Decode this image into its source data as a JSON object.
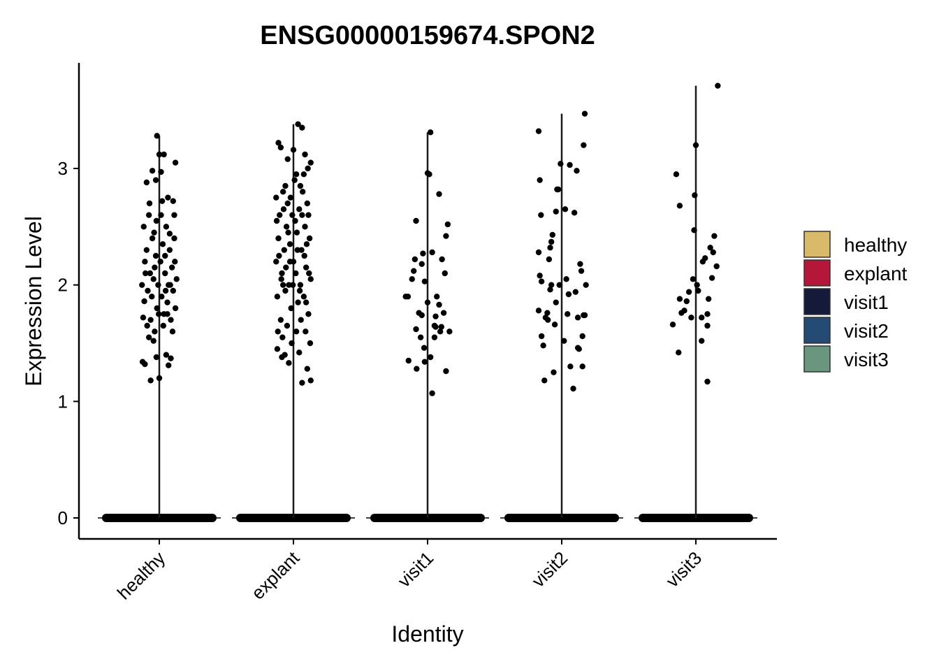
{
  "chart_data": {
    "type": "scatter",
    "subtype": "violin-jitter",
    "title": "ENSG00000159674.SPON2",
    "xlabel": "Identity",
    "ylabel": "Expression Level",
    "categories": [
      "healthy",
      "explant",
      "visit1",
      "visit2",
      "visit3"
    ],
    "yticks": [
      0,
      1,
      2,
      3
    ],
    "ylim": [
      -0.18,
      3.9
    ],
    "violin_max": [
      3.28,
      3.38,
      3.31,
      3.47,
      3.71
    ],
    "legend": {
      "position": "right",
      "entries": [
        {
          "label": "healthy",
          "color": "#D9B96A"
        },
        {
          "label": "explant",
          "color": "#B5173A"
        },
        {
          "label": "visit1",
          "color": "#161A3A"
        },
        {
          "label": "visit2",
          "color": "#244B74"
        },
        {
          "label": "visit3",
          "color": "#6A957E"
        }
      ]
    },
    "zero_band": {
      "value": 0
    },
    "point_color": "#000000",
    "series": [
      {
        "name": "healthy",
        "points": [
          [
            -0.3,
            2.0
          ],
          [
            -0.28,
            1.72
          ],
          [
            -0.26,
            1.86
          ],
          [
            -0.25,
            2.2
          ],
          [
            -0.22,
            2.3
          ],
          [
            -0.2,
            1.95
          ],
          [
            -0.18,
            2.6
          ],
          [
            -0.16,
            2.1
          ],
          [
            -0.15,
            1.7
          ],
          [
            -0.12,
            2.4
          ],
          [
            -0.1,
            2.05
          ],
          [
            -0.08,
            1.6
          ],
          [
            -0.06,
            2.25
          ],
          [
            -0.04,
            1.8
          ],
          [
            -0.02,
            2.0
          ],
          [
            0.02,
            2.2
          ],
          [
            0.04,
            1.9
          ],
          [
            0.06,
            2.35
          ],
          [
            0.08,
            1.75
          ],
          [
            0.1,
            2.1
          ],
          [
            0.12,
            2.5
          ],
          [
            0.14,
            1.85
          ],
          [
            0.16,
            2.0
          ],
          [
            0.18,
            2.3
          ],
          [
            0.2,
            1.7
          ],
          [
            0.22,
            2.15
          ],
          [
            0.24,
            1.95
          ],
          [
            0.26,
            2.4
          ],
          [
            0.28,
            1.8
          ],
          [
            0.3,
            2.05
          ],
          [
            -0.27,
            2.5
          ],
          [
            -0.21,
            1.65
          ],
          [
            -0.17,
            2.7
          ],
          [
            -0.13,
            1.9
          ],
          [
            -0.09,
            2.45
          ],
          [
            -0.05,
            2.55
          ],
          [
            -0.01,
            1.75
          ],
          [
            0.03,
            2.6
          ],
          [
            0.07,
            1.65
          ],
          [
            0.11,
            1.95
          ],
          [
            0.15,
            2.75
          ],
          [
            0.19,
            2.0
          ],
          [
            0.23,
            1.6
          ],
          [
            0.27,
            2.2
          ],
          [
            -0.29,
            1.34
          ],
          [
            -0.25,
            1.32
          ],
          [
            -0.1,
            1.52
          ],
          [
            -0.05,
            1.38
          ],
          [
            0.0,
            1.2
          ],
          [
            0.12,
            1.4
          ],
          [
            0.16,
            1.31
          ],
          [
            0.2,
            1.37
          ],
          [
            -0.15,
            1.18
          ],
          [
            -0.22,
            2.88
          ],
          [
            -0.12,
            2.98
          ],
          [
            -0.04,
            3.28
          ],
          [
            0.0,
            3.12
          ],
          [
            0.08,
            3.12
          ],
          [
            0.03,
            2.97
          ],
          [
            0.28,
            3.05
          ],
          [
            -0.06,
            2.9
          ],
          [
            0.24,
            2.72
          ],
          [
            0.05,
            2.72
          ],
          [
            -0.18,
            1.55
          ],
          [
            0.1,
            2.25
          ],
          [
            -0.24,
            2.1
          ],
          [
            0.18,
            2.44
          ],
          [
            -0.08,
            2.15
          ],
          [
            0.14,
            1.75
          ],
          [
            0.26,
            2.6
          ]
        ]
      },
      {
        "name": "explant",
        "points": [
          [
            -0.3,
            2.2
          ],
          [
            -0.28,
            1.9
          ],
          [
            -0.26,
            2.4
          ],
          [
            -0.24,
            2.6
          ],
          [
            -0.22,
            1.7
          ],
          [
            -0.2,
            2.1
          ],
          [
            -0.18,
            2.8
          ],
          [
            -0.16,
            2.3
          ],
          [
            -0.14,
            1.95
          ],
          [
            -0.12,
            2.5
          ],
          [
            -0.1,
            2.7
          ],
          [
            -0.08,
            2.0
          ],
          [
            -0.06,
            2.35
          ],
          [
            -0.04,
            1.8
          ],
          [
            -0.02,
            2.6
          ],
          [
            0.0,
            2.2
          ],
          [
            0.02,
            2.9
          ],
          [
            0.04,
            2.1
          ],
          [
            0.06,
            2.45
          ],
          [
            0.08,
            1.85
          ],
          [
            0.1,
            2.65
          ],
          [
            0.12,
            2.0
          ],
          [
            0.14,
            2.3
          ],
          [
            0.16,
            2.8
          ],
          [
            0.18,
            1.9
          ],
          [
            0.2,
            2.5
          ],
          [
            0.22,
            2.15
          ],
          [
            0.24,
            2.7
          ],
          [
            0.26,
            1.75
          ],
          [
            0.28,
            2.4
          ],
          [
            0.3,
            2.05
          ],
          [
            -0.29,
            2.55
          ],
          [
            -0.25,
            2.25
          ],
          [
            -0.21,
            2.05
          ],
          [
            -0.17,
            2.65
          ],
          [
            -0.13,
            2.15
          ],
          [
            -0.09,
            2.45
          ],
          [
            -0.05,
            2.75
          ],
          [
            -0.01,
            2.0
          ],
          [
            0.03,
            2.55
          ],
          [
            0.07,
            2.3
          ],
          [
            0.11,
            1.95
          ],
          [
            0.15,
            2.6
          ],
          [
            0.19,
            2.25
          ],
          [
            0.23,
            2.35
          ],
          [
            0.27,
            2.1
          ],
          [
            -0.27,
            1.6
          ],
          [
            -0.19,
            1.55
          ],
          [
            -0.11,
            1.65
          ],
          [
            -0.03,
            1.5
          ],
          [
            0.05,
            1.6
          ],
          [
            0.13,
            1.7
          ],
          [
            0.21,
            1.6
          ],
          [
            0.29,
            1.5
          ],
          [
            -0.28,
            1.45
          ],
          [
            -0.15,
            1.4
          ],
          [
            -0.08,
            1.33
          ],
          [
            0.1,
            1.42
          ],
          [
            0.15,
            1.16
          ],
          [
            0.24,
            1.28
          ],
          [
            0.3,
            1.18
          ],
          [
            -0.2,
            1.38
          ],
          [
            -0.26,
            3.22
          ],
          [
            -0.22,
            3.18
          ],
          [
            0.08,
            3.38
          ],
          [
            0.15,
            3.35
          ],
          [
            0.0,
            3.16
          ],
          [
            0.2,
            3.12
          ],
          [
            0.25,
            3.0
          ],
          [
            0.3,
            3.05
          ],
          [
            -0.1,
            3.08
          ],
          [
            0.05,
            2.95
          ],
          [
            -0.3,
            2.75
          ],
          [
            0.18,
            2.95
          ],
          [
            -0.14,
            2.85
          ],
          [
            0.26,
            2.6
          ],
          [
            0.12,
            2.85
          ],
          [
            -0.06,
            2.2
          ],
          [
            0.22,
            1.85
          ],
          [
            -0.18,
            2.0
          ]
        ]
      },
      {
        "name": "visit1",
        "points": [
          [
            -0.38,
            1.9
          ],
          [
            -0.34,
            1.9
          ],
          [
            -0.33,
            1.35
          ],
          [
            -0.27,
            2.05
          ],
          [
            -0.24,
            2.12
          ],
          [
            -0.22,
            2.22
          ],
          [
            -0.2,
            2.55
          ],
          [
            -0.2,
            1.62
          ],
          [
            -0.19,
            1.28
          ],
          [
            -0.12,
            1.55
          ],
          [
            -0.1,
            2.18
          ],
          [
            -0.08,
            2.27
          ],
          [
            -0.1,
            1.74
          ],
          [
            -0.06,
            1.46
          ],
          [
            -0.05,
            1.34
          ],
          [
            -0.05,
            2.03
          ],
          [
            0.0,
            2.96
          ],
          [
            0.03,
            2.95
          ],
          [
            0.05,
            1.38
          ],
          [
            0.08,
            1.07
          ],
          [
            0.08,
            2.28
          ],
          [
            0.12,
            1.65
          ],
          [
            0.14,
            1.64
          ],
          [
            0.16,
            1.9
          ],
          [
            0.2,
            1.83
          ],
          [
            0.22,
            1.6
          ],
          [
            0.24,
            1.64
          ],
          [
            0.25,
            2.22
          ],
          [
            0.28,
            1.76
          ],
          [
            0.3,
            2.1
          ],
          [
            0.32,
            2.42
          ],
          [
            0.35,
            2.52
          ],
          [
            0.38,
            1.6
          ],
          [
            0.32,
            1.26
          ],
          [
            0.2,
            2.78
          ],
          [
            0.14,
            1.73
          ],
          [
            0.0,
            1.85
          ],
          [
            -0.15,
            1.76
          ],
          [
            0.05,
            3.31
          ],
          [
            0.12,
            1.55
          ]
        ]
      },
      {
        "name": "visit2",
        "points": [
          [
            -0.4,
            3.32
          ],
          [
            -0.38,
            2.9
          ],
          [
            -0.36,
            2.6
          ],
          [
            -0.4,
            2.28
          ],
          [
            -0.38,
            2.08
          ],
          [
            -0.35,
            2.03
          ],
          [
            -0.4,
            1.78
          ],
          [
            -0.35,
            1.56
          ],
          [
            -0.32,
            1.48
          ],
          [
            -0.3,
            1.18
          ],
          [
            -0.28,
            1.72
          ],
          [
            -0.25,
            1.76
          ],
          [
            -0.24,
            1.7
          ],
          [
            -0.2,
            1.96
          ],
          [
            -0.22,
            2.22
          ],
          [
            -0.2,
            2.32
          ],
          [
            -0.18,
            2.37
          ],
          [
            -0.16,
            2.43
          ],
          [
            -0.18,
            2.0
          ],
          [
            -0.14,
            1.25
          ],
          [
            -0.12,
            1.66
          ],
          [
            -0.1,
            1.85
          ],
          [
            -0.1,
            2.63
          ],
          [
            -0.08,
            2.82
          ],
          [
            -0.06,
            2.82
          ],
          [
            -0.04,
            2.0
          ],
          [
            -0.02,
            3.04
          ],
          [
            0.04,
            1.52
          ],
          [
            0.06,
            2.65
          ],
          [
            0.08,
            2.05
          ],
          [
            0.1,
            1.75
          ],
          [
            0.12,
            1.92
          ],
          [
            0.14,
            3.03
          ],
          [
            0.15,
            1.3
          ],
          [
            0.2,
            1.11
          ],
          [
            0.22,
            2.62
          ],
          [
            0.24,
            1.94
          ],
          [
            0.26,
            2.98
          ],
          [
            0.28,
            1.46
          ],
          [
            0.3,
            1.45
          ],
          [
            0.32,
            2.18
          ],
          [
            0.34,
            2.12
          ],
          [
            0.36,
            1.56
          ],
          [
            0.36,
            1.3
          ],
          [
            0.38,
            1.74
          ],
          [
            0.4,
            1.74
          ],
          [
            0.38,
            3.2
          ],
          [
            0.4,
            3.47
          ],
          [
            0.42,
            2.0
          ],
          [
            0.28,
            1.72
          ]
        ]
      },
      {
        "name": "visit3",
        "points": [
          [
            -0.4,
            1.66
          ],
          [
            -0.34,
            2.95
          ],
          [
            -0.3,
            1.42
          ],
          [
            -0.28,
            1.88
          ],
          [
            -0.28,
            2.68
          ],
          [
            -0.25,
            1.76
          ],
          [
            -0.2,
            1.78
          ],
          [
            -0.16,
            1.86
          ],
          [
            -0.12,
            1.94
          ],
          [
            -0.08,
            1.72
          ],
          [
            -0.05,
            2.05
          ],
          [
            -0.03,
            2.47
          ],
          [
            -0.02,
            2.77
          ],
          [
            0.0,
            3.2
          ],
          [
            0.02,
            2.0
          ],
          [
            0.04,
            1.95
          ],
          [
            0.1,
            1.52
          ],
          [
            0.1,
            1.72
          ],
          [
            0.12,
            2.2
          ],
          [
            0.16,
            2.23
          ],
          [
            0.2,
            1.75
          ],
          [
            0.2,
            1.65
          ],
          [
            0.2,
            1.17
          ],
          [
            0.22,
            1.88
          ],
          [
            0.25,
            2.32
          ],
          [
            0.28,
            2.06
          ],
          [
            0.3,
            2.28
          ],
          [
            0.32,
            2.42
          ],
          [
            0.36,
            2.16
          ],
          [
            0.38,
            3.71
          ]
        ]
      }
    ]
  }
}
